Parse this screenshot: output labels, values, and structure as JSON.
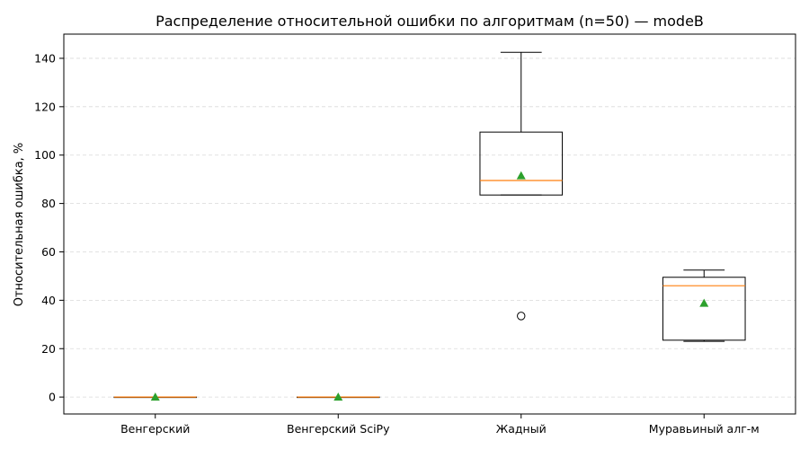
{
  "chart_data": {
    "type": "box",
    "title": "Распределение относительной ошибки по алгоритмам (n=50) — modeB",
    "xlabel": "",
    "ylabel": "Относительная ошибка, %",
    "ylim": [
      -7,
      150
    ],
    "yticks": [
      0,
      20,
      40,
      60,
      80,
      100,
      120,
      140
    ],
    "grid": true,
    "categories": [
      "Венгерский",
      "Венгерский SciPy",
      "Жадный",
      "Муравьиный алг-м"
    ],
    "series": [
      {
        "whisker_low": 0,
        "q1": 0,
        "median": 0,
        "q3": 0,
        "whisker_high": 0,
        "mean": 0,
        "outliers": []
      },
      {
        "whisker_low": 0,
        "q1": 0,
        "median": 0,
        "q3": 0,
        "whisker_high": 0,
        "mean": 0,
        "outliers": []
      },
      {
        "whisker_low": 83.5,
        "q1": 83.5,
        "median": 89.5,
        "q3": 109.5,
        "whisker_high": 142.5,
        "mean": 91.5,
        "outliers": [
          33.5
        ]
      },
      {
        "whisker_low": 23,
        "q1": 23.5,
        "median": 46,
        "q3": 49.5,
        "whisker_high": 52.5,
        "mean": 38.8,
        "outliers": []
      }
    ],
    "colors": {
      "box": "#000000",
      "median": "#ff7f0e",
      "mean": "#2ca02c",
      "grid": "#d9d9d9"
    }
  }
}
